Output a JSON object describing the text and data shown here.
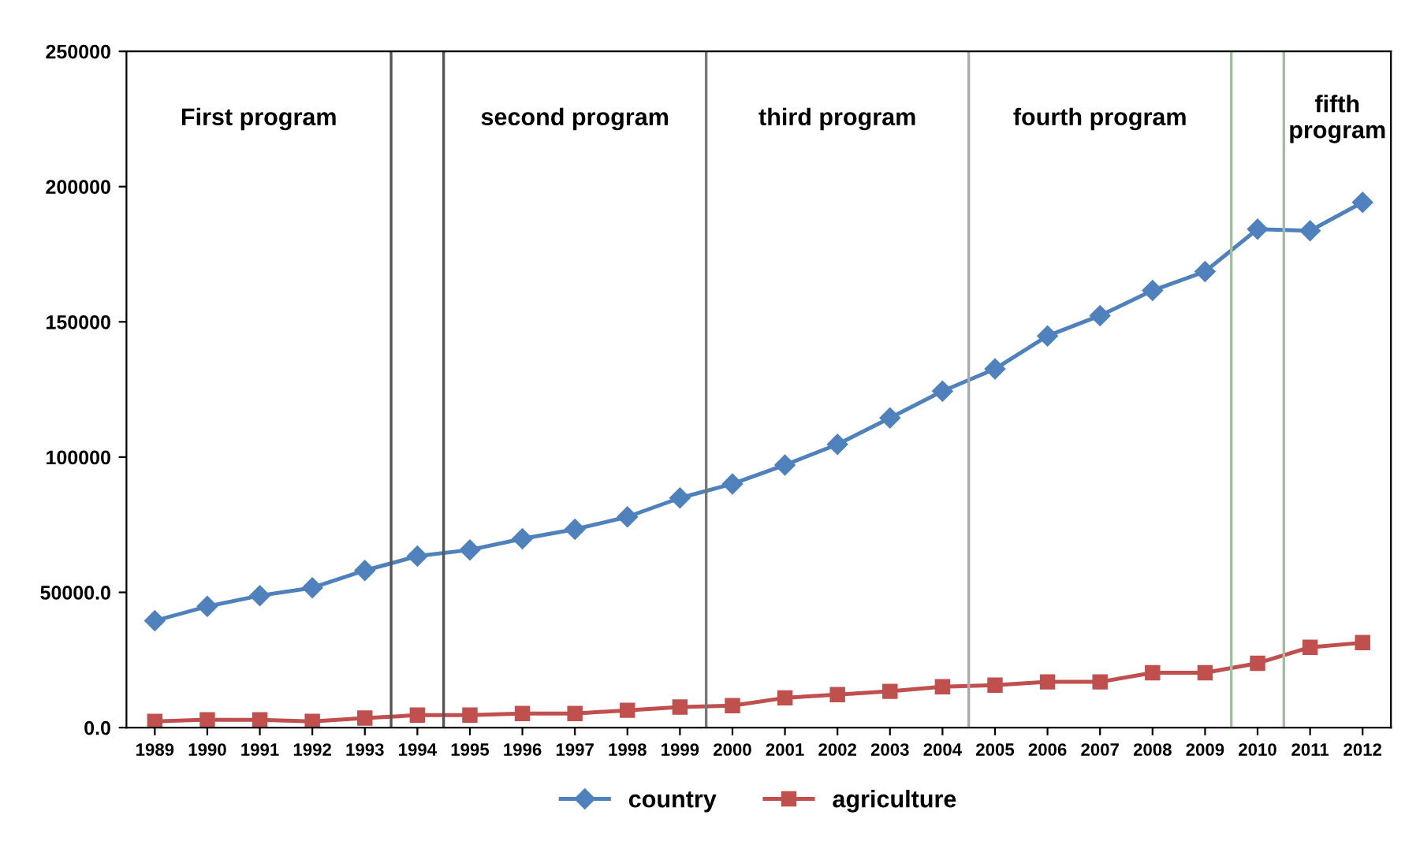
{
  "chart_data": {
    "type": "line",
    "x": [
      1989,
      1990,
      1991,
      1992,
      1993,
      1994,
      1995,
      1996,
      1997,
      1998,
      1999,
      2000,
      2001,
      2002,
      2003,
      2004,
      2005,
      2006,
      2007,
      2008,
      2009,
      2010,
      2011,
      2012
    ],
    "series": [
      {
        "name": "country",
        "color": "#4f81bd",
        "marker": "diamond",
        "values": [
          39500,
          44800,
          48800,
          51700,
          58100,
          63400,
          65700,
          69800,
          73300,
          77900,
          84900,
          90100,
          97100,
          104700,
          114500,
          124400,
          132600,
          144800,
          152300,
          161600,
          168600,
          184300,
          183700,
          194200
        ]
      },
      {
        "name": "agriculture",
        "color": "#c0504d",
        "marker": "square",
        "values": [
          2300,
          2900,
          2900,
          2300,
          3500,
          4600,
          4600,
          5200,
          5200,
          6400,
          7600,
          8100,
          11000,
          12200,
          13400,
          15100,
          15700,
          16900,
          16900,
          20300,
          20300,
          23800,
          29700,
          31400
        ]
      }
    ],
    "xlim": [
      1988.46,
      2012.54
    ],
    "xticks": [
      1989,
      1990,
      1991,
      1992,
      1993,
      1994,
      1995,
      1996,
      1997,
      1998,
      1999,
      2000,
      2001,
      2002,
      2003,
      2004,
      2005,
      2006,
      2007,
      2008,
      2009,
      2010,
      2011,
      2012
    ],
    "ylim": [
      0,
      250000
    ],
    "yticks": [
      {
        "value": 0,
        "label": "0.0"
      },
      {
        "value": 50000,
        "label": "50000.0"
      },
      100000,
      150000,
      200000,
      250000
    ],
    "ref_lines": [
      {
        "axis": "x",
        "value": 1993.5,
        "color": "#555555"
      },
      {
        "axis": "x",
        "value": 1994.5,
        "color": "#555555"
      },
      {
        "axis": "x",
        "value": 1999.5,
        "color": "#777777"
      },
      {
        "axis": "x",
        "value": 2004.5,
        "color": "#aaaaaa"
      },
      {
        "axis": "x",
        "value": 2009.5,
        "color": "#9fbf9f"
      },
      {
        "axis": "x",
        "value": 2010.5,
        "color": "#9fbf9f"
      }
    ],
    "annotations": [
      "First program",
      "second program",
      "third program",
      "fourth program",
      "fifth\nprogram"
    ],
    "grid": false,
    "legend": "bottom"
  }
}
